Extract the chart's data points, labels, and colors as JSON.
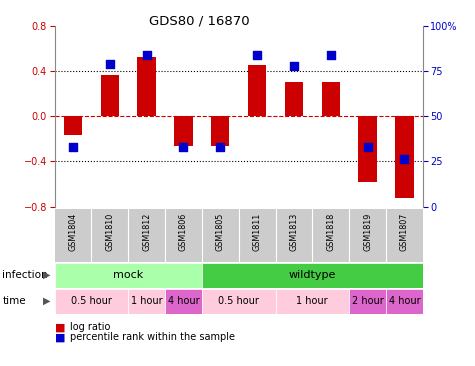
{
  "title": "GDS80 / 16870",
  "samples": [
    "GSM1804",
    "GSM1810",
    "GSM1812",
    "GSM1806",
    "GSM1805",
    "GSM1811",
    "GSM1813",
    "GSM1818",
    "GSM1819",
    "GSM1807"
  ],
  "log_ratio": [
    -0.17,
    0.36,
    0.52,
    -0.26,
    -0.26,
    0.45,
    0.3,
    0.3,
    -0.58,
    -0.72
  ],
  "percentile_mapped": [
    -0.27,
    0.46,
    0.54,
    -0.27,
    -0.27,
    0.54,
    0.44,
    0.54,
    -0.27,
    -0.38
  ],
  "ylim_left": [
    -0.8,
    0.8
  ],
  "ylim_right": [
    0,
    100
  ],
  "yticks_left": [
    -0.8,
    -0.4,
    0.0,
    0.4,
    0.8
  ],
  "yticks_right": [
    0,
    25,
    50,
    75,
    100
  ],
  "bar_color": "#cc0000",
  "dot_color": "#0000cc",
  "hline_color": "#cc0000",
  "dotted_color": "#000000",
  "infection_groups": [
    {
      "label": "mock",
      "start": 0,
      "end": 4,
      "color": "#aaffaa"
    },
    {
      "label": "wildtype",
      "start": 4,
      "end": 10,
      "color": "#44cc44"
    }
  ],
  "time_groups": [
    {
      "label": "0.5 hour",
      "start": 0,
      "end": 2,
      "color": "#ffccdd"
    },
    {
      "label": "1 hour",
      "start": 2,
      "end": 3,
      "color": "#ffccdd"
    },
    {
      "label": "4 hour",
      "start": 3,
      "end": 4,
      "color": "#dd66cc"
    },
    {
      "label": "0.5 hour",
      "start": 4,
      "end": 6,
      "color": "#ffccdd"
    },
    {
      "label": "1 hour",
      "start": 6,
      "end": 8,
      "color": "#ffccdd"
    },
    {
      "label": "2 hour",
      "start": 8,
      "end": 9,
      "color": "#dd66cc"
    },
    {
      "label": "4 hour",
      "start": 9,
      "end": 10,
      "color": "#dd66cc"
    }
  ],
  "legend_red": "log ratio",
  "legend_blue": "percentile rank within the sample",
  "bar_width": 0.5,
  "dot_size": 40,
  "n": 10
}
